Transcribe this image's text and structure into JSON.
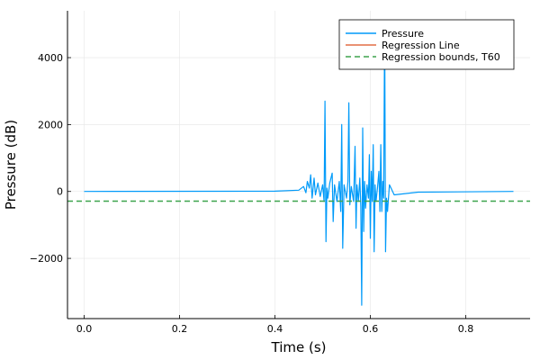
{
  "chart_data": {
    "type": "line",
    "xlabel": "Time (s)",
    "ylabel": "Pressure (dB)",
    "xlim": [
      -0.035,
      0.935
    ],
    "ylim": [
      -3800,
      5400
    ],
    "xticks": [
      0.0,
      0.2,
      0.4,
      0.6,
      0.8
    ],
    "xtick_labels": [
      "0.0",
      "0.2",
      "0.4",
      "0.6",
      "0.8"
    ],
    "yticks": [
      -2000,
      0,
      2000,
      4000
    ],
    "ytick_labels": [
      "−2000",
      "0",
      "2000",
      "4000"
    ],
    "grid": true,
    "legend_position": "top-right",
    "series": [
      {
        "name": "Pressure",
        "color": "#009af9",
        "style": "solid",
        "x": [
          0.0,
          0.4,
          0.45,
          0.46,
          0.465,
          0.468,
          0.472,
          0.475,
          0.478,
          0.482,
          0.485,
          0.49,
          0.495,
          0.5,
          0.503,
          0.505,
          0.507,
          0.509,
          0.511,
          0.515,
          0.52,
          0.522,
          0.525,
          0.53,
          0.535,
          0.538,
          0.54,
          0.542,
          0.545,
          0.55,
          0.553,
          0.555,
          0.557,
          0.56,
          0.565,
          0.568,
          0.57,
          0.572,
          0.575,
          0.578,
          0.58,
          0.582,
          0.584,
          0.586,
          0.588,
          0.59,
          0.593,
          0.596,
          0.598,
          0.6,
          0.602,
          0.604,
          0.606,
          0.608,
          0.61,
          0.612,
          0.615,
          0.618,
          0.62,
          0.622,
          0.624,
          0.626,
          0.628,
          0.63,
          0.632,
          0.634,
          0.636,
          0.64,
          0.65,
          0.7,
          0.9
        ],
        "y": [
          0,
          10,
          40,
          150,
          -40,
          300,
          100,
          500,
          -200,
          400,
          -100,
          250,
          -150,
          200,
          -300,
          2700,
          -1500,
          100,
          -200,
          250,
          550,
          -900,
          200,
          -300,
          300,
          -600,
          2000,
          -1700,
          200,
          -200,
          300,
          2650,
          -400,
          150,
          -300,
          1350,
          -1100,
          200,
          -300,
          400,
          -450,
          -3400,
          1900,
          -1200,
          300,
          -500,
          200,
          -200,
          1100,
          -1400,
          600,
          -300,
          1400,
          -1800,
          200,
          -300,
          100,
          600,
          -600,
          1400,
          -600,
          300,
          -200,
          5100,
          -1800,
          -200,
          -600,
          200,
          -100,
          -20,
          0
        ]
      },
      {
        "name": "Regression Line",
        "color": "#e26f46",
        "style": "solid",
        "x": [],
        "y": []
      },
      {
        "name": "Regression bounds, T60",
        "color": "#3da44d",
        "style": "dashed",
        "hline": -290
      }
    ]
  }
}
